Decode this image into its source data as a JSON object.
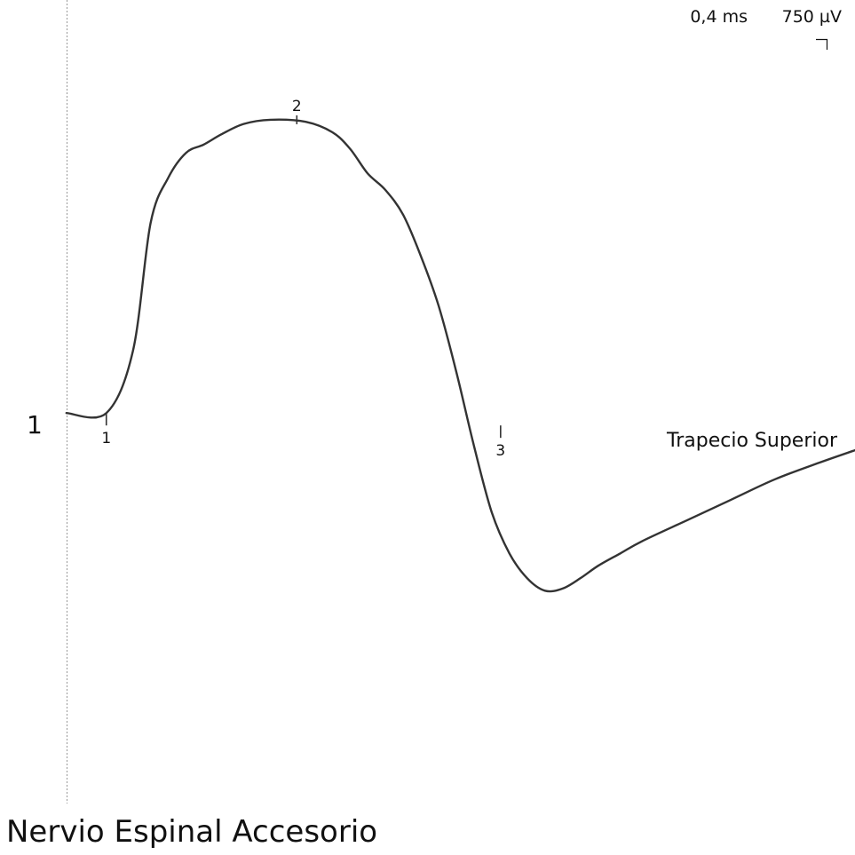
{
  "chart_data": {
    "type": "line",
    "title": "Nervio Espinal Accesorio",
    "trace_number": "1",
    "scale": {
      "time": "0,4 ms",
      "amplitude": "750 µV"
    },
    "series": [
      {
        "name": "Trapecio Superior",
        "unit_x": "ms",
        "unit_y": "µV",
        "x": [
          0,
          0.09,
          0.15,
          0.19,
          0.23,
          0.27,
          0.31,
          0.35,
          0.4,
          0.46,
          0.54,
          0.6,
          0.64,
          0.68,
          0.72,
          0.76,
          0.8,
          0.84,
          0.88,
          0.92,
          0.96,
          1.0,
          1.04,
          1.08,
          1.12,
          1.16,
          1.2,
          1.25,
          1.3,
          1.4,
          1.5,
          1.6,
          1.7,
          1.78
        ],
        "y": [
          0,
          0,
          150,
          460,
          570,
          630,
          650,
          675,
          700,
          710,
          705,
          680,
          640,
          580,
          540,
          480,
          380,
          260,
          100,
          -80,
          -240,
          -340,
          -400,
          -430,
          -425,
          -400,
          -370,
          -340,
          -310,
          -260,
          -210,
          -160,
          -120,
          -90
        ]
      }
    ],
    "markers": [
      {
        "label": "1",
        "x": 0.09,
        "y": 0
      },
      {
        "label": "2",
        "x": 0.52,
        "y": 710
      },
      {
        "label": "3",
        "x": 0.98,
        "y": -30
      }
    ],
    "xlim": [
      -0.15,
      1.78
    ],
    "ylim": [
      -1070,
      1000
    ],
    "grid": false,
    "colors": {
      "trace": "#333333",
      "baseline": "#999999",
      "text": "#111111"
    }
  }
}
